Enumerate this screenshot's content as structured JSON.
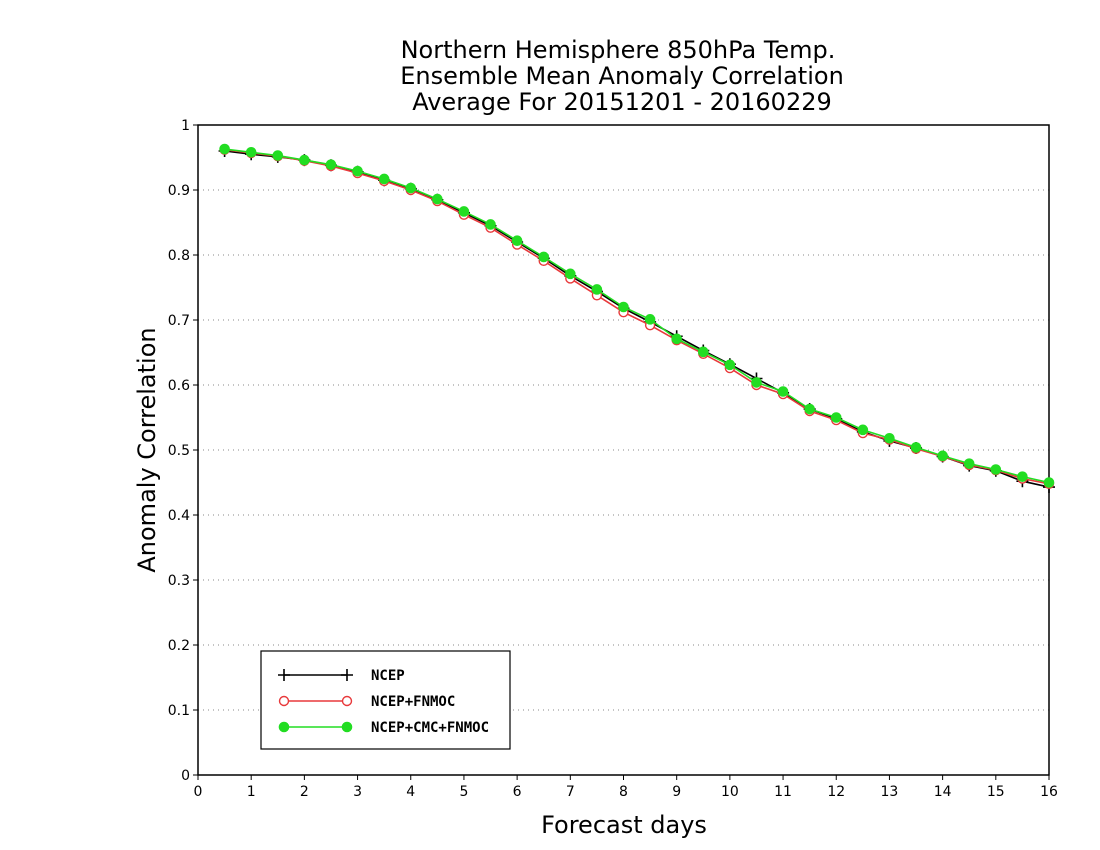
{
  "chart_data": {
    "type": "line",
    "title": [
      "Northern Hemisphere 850hPa Temp.",
      "Ensemble Mean Anomaly Correlation",
      "Average For 20151201 - 20160229"
    ],
    "xlabel": "Forecast days",
    "ylabel": "Anomaly Correlation",
    "xlim": [
      0,
      16
    ],
    "ylim": [
      0,
      1
    ],
    "xticks": [
      "0",
      "1",
      "2",
      "3",
      "4",
      "5",
      "6",
      "7",
      "8",
      "9",
      "10",
      "11",
      "12",
      "13",
      "14",
      "15",
      "16"
    ],
    "yticks": [
      "0",
      "0.1",
      "0.2",
      "0.3",
      "0.4",
      "0.5",
      "0.6",
      "0.7",
      "0.8",
      "0.9",
      "1"
    ],
    "grid": "horizontal-dotted",
    "legend_position": "bottom-left",
    "x": [
      0.5,
      1,
      1.5,
      2,
      2.5,
      3,
      3.5,
      4,
      4.5,
      5,
      5.5,
      6,
      6.5,
      7,
      7.5,
      8,
      8.5,
      9,
      9.5,
      10,
      10.5,
      11,
      11.5,
      12,
      12.5,
      13,
      13.5,
      14,
      14.5,
      15,
      15.5,
      16
    ],
    "series": [
      {
        "name": "NCEP",
        "color": "#000000",
        "marker": "plus",
        "values": [
          0.96,
          0.955,
          0.951,
          0.946,
          0.938,
          0.928,
          0.915,
          0.902,
          0.885,
          0.865,
          0.845,
          0.82,
          0.795,
          0.768,
          0.744,
          0.718,
          0.697,
          0.675,
          0.653,
          0.632,
          0.61,
          0.588,
          0.563,
          0.548,
          0.528,
          0.514,
          0.503,
          0.49,
          0.476,
          0.468,
          0.452,
          0.443
        ]
      },
      {
        "name": "NCEP+FNMOC",
        "color": "#e8393b",
        "marker": "circle-open",
        "values": [
          0.962,
          0.957,
          0.952,
          0.945,
          0.937,
          0.926,
          0.914,
          0.9,
          0.883,
          0.862,
          0.842,
          0.816,
          0.791,
          0.764,
          0.738,
          0.712,
          0.692,
          0.669,
          0.648,
          0.626,
          0.6,
          0.586,
          0.56,
          0.546,
          0.526,
          0.516,
          0.502,
          0.49,
          0.477,
          0.469,
          0.456,
          0.448
        ]
      },
      {
        "name": "NCEP+CMC+FNMOC",
        "color": "#22dd22",
        "marker": "circle-filled",
        "values": [
          0.963,
          0.958,
          0.953,
          0.946,
          0.939,
          0.929,
          0.917,
          0.903,
          0.886,
          0.867,
          0.847,
          0.822,
          0.797,
          0.771,
          0.747,
          0.72,
          0.701,
          0.671,
          0.651,
          0.631,
          0.604,
          0.59,
          0.563,
          0.55,
          0.531,
          0.518,
          0.504,
          0.491,
          0.479,
          0.47,
          0.459,
          0.45
        ]
      }
    ]
  }
}
